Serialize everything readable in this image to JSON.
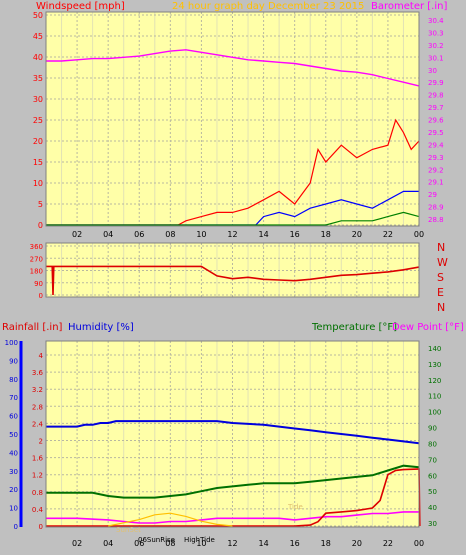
{
  "header": {
    "wind_title": "Windspeed [mph]",
    "date_title": "24 hour graph day   December 23 2015",
    "baro_title": "Barometer [.in]"
  },
  "lower_header": {
    "rain_title": "Rainfall [.in]",
    "humidity_title": "Humidity [%]",
    "temp_title": "Temperature [°F]",
    "dew_title": "Dew Point [°F]"
  },
  "compass": [
    "N",
    "W",
    "S",
    "E",
    "N"
  ],
  "event_labels": {
    "sunrise": "06SunRise",
    "hightide": "HighTide",
    "faded_1": "Tide",
    "faded_2": "SunSet"
  },
  "colors": {
    "plot_bg": "#ffffa8",
    "frame": "#c0c0c0",
    "wind": "#ff0000",
    "wind_avg": "#0000ff",
    "wind_low": "#008000",
    "barometer": "#ff00ff",
    "direction": "#dd0000",
    "rain": "#dd0000",
    "humidity": "#0000dd",
    "temperature": "#007000",
    "dewpoint": "#ff00ff",
    "sun": "#ffc000"
  },
  "chart_data": [
    {
      "type": "line",
      "title": "Windspeed [mph]",
      "subtitle": "24 hour graph day   December 23 2015",
      "x_ticks": [
        "02",
        "04",
        "06",
        "08",
        "10",
        "12",
        "14",
        "16",
        "18",
        "20",
        "22",
        "00"
      ],
      "y_left_label": "Windspeed [mph]",
      "y_left_ticks": [
        0,
        5,
        10,
        15,
        20,
        25,
        30,
        35,
        40,
        45,
        50
      ],
      "y_right_label": "Barometer [.in]",
      "y_right_ticks": [
        "28.8",
        "28.9",
        "29",
        "29.1",
        "29.2",
        "29.3",
        "29.4",
        "29.5",
        "29.6",
        "29.7",
        "29.8",
        "29.9",
        "30",
        "30.1",
        "30.2",
        "30.3",
        "30.4"
      ],
      "y_right_range": [
        28.8,
        30.4
      ],
      "grid": true,
      "series": [
        {
          "name": "Barometer [.in]",
          "axis": "right",
          "x": [
            0,
            1,
            2,
            3,
            4,
            5,
            6,
            7,
            8,
            9,
            10,
            11,
            12,
            13,
            14,
            15,
            16,
            17,
            18,
            19,
            20,
            21,
            22,
            23,
            24
          ],
          "values": [
            30.07,
            30.07,
            30.08,
            30.09,
            30.09,
            30.1,
            30.11,
            30.13,
            30.15,
            30.16,
            30.14,
            30.12,
            30.1,
            30.08,
            30.07,
            30.06,
            30.05,
            30.03,
            30.01,
            29.99,
            29.98,
            29.96,
            29.93,
            29.9,
            29.87
          ]
        },
        {
          "name": "Windspeed [mph]",
          "axis": "left",
          "x": [
            0,
            8.5,
            9,
            10,
            11,
            12,
            13,
            14,
            15,
            16,
            17,
            17.5,
            18,
            19,
            20,
            21,
            22,
            22.5,
            23,
            23.5,
            24
          ],
          "values": [
            0,
            0,
            1,
            2,
            3,
            3,
            4,
            6,
            8,
            5,
            10,
            18,
            15,
            19,
            16,
            18,
            19,
            25,
            22,
            18,
            20
          ]
        },
        {
          "name": "Average speed",
          "axis": "left",
          "x": [
            0,
            13.5,
            14,
            15,
            16,
            17,
            18,
            19,
            20,
            21,
            22,
            23,
            24
          ],
          "values": [
            0,
            0,
            2,
            3,
            2,
            4,
            5,
            6,
            5,
            4,
            6,
            8,
            8
          ]
        },
        {
          "name": "Low speed",
          "axis": "left",
          "x": [
            0,
            17,
            18,
            19,
            20,
            21,
            22,
            23,
            24
          ],
          "values": [
            0,
            0,
            0,
            1,
            1,
            1,
            2,
            3,
            2
          ]
        }
      ]
    },
    {
      "type": "line",
      "y_left_ticks": [
        0,
        90,
        180,
        270,
        360
      ],
      "y_range": [
        0,
        360
      ],
      "grid": true,
      "series": [
        {
          "name": "Wind direction",
          "x": [
            0,
            0.4,
            0.45,
            0.5,
            0.55,
            10,
            11,
            12,
            13,
            14,
            15,
            16,
            17,
            18,
            19,
            20,
            21,
            22,
            23,
            24
          ],
          "values": [
            210,
            210,
            0,
            210,
            210,
            210,
            140,
            120,
            130,
            115,
            110,
            105,
            115,
            130,
            145,
            150,
            160,
            170,
            185,
            205
          ]
        }
      ]
    },
    {
      "type": "line",
      "x_ticks": [
        "02",
        "04",
        "06",
        "08",
        "10",
        "12",
        "14",
        "16",
        "18",
        "20",
        "22",
        "00"
      ],
      "y_rain_ticks": [
        "0",
        "0.4",
        "0.8",
        "1.2",
        "1.6",
        "2",
        "2.4",
        "2.8",
        "3.2",
        "3.6",
        "4"
      ],
      "y_rain_range": [
        0,
        4
      ],
      "y_humidity_ticks": [
        0,
        10,
        20,
        30,
        40,
        50,
        60,
        70,
        80,
        90,
        100
      ],
      "y_temp_ticks": [
        30,
        40,
        50,
        60,
        70,
        80,
        90,
        100,
        110,
        120,
        130,
        140
      ],
      "y_temp_range": [
        25,
        145
      ],
      "grid": true,
      "series": [
        {
          "name": "Humidity [%]",
          "axis": "humidity",
          "x": [
            0,
            2,
            2.5,
            3,
            3.5,
            4,
            4.5,
            11,
            12,
            14,
            15,
            16,
            17,
            18,
            19,
            20,
            21,
            22,
            23,
            24
          ],
          "values": [
            54,
            54,
            55,
            55,
            56,
            56,
            57,
            57,
            56,
            55,
            54,
            53,
            52,
            51,
            50,
            49,
            48,
            47,
            46,
            45
          ]
        },
        {
          "name": "Temperature [°F]",
          "axis": "temp",
          "x": [
            0,
            1,
            2,
            3,
            4,
            5,
            6,
            7,
            8,
            9,
            10,
            11,
            12,
            13,
            14,
            15,
            16,
            17,
            18,
            19,
            20,
            21,
            22,
            23,
            24
          ],
          "values": [
            49,
            49,
            49,
            49,
            47,
            46,
            46,
            46,
            47,
            48,
            50,
            52,
            53,
            54,
            55,
            55,
            55,
            56,
            57,
            58,
            59,
            60,
            63,
            66,
            65
          ]
        },
        {
          "name": "Dew Point [°F]",
          "axis": "temp",
          "x": [
            0,
            2,
            4,
            5,
            6,
            7,
            8,
            9,
            10,
            11,
            12,
            13,
            14,
            15,
            16,
            17,
            18,
            19,
            20,
            21,
            22,
            23,
            24
          ],
          "values": [
            33,
            33,
            32,
            31,
            30,
            30,
            31,
            31,
            32,
            33,
            33,
            33,
            33,
            33,
            32,
            33,
            34,
            34,
            35,
            36,
            36,
            37,
            37
          ]
        },
        {
          "name": "Rainfall [.in]",
          "axis": "rain",
          "x": [
            0,
            16,
            17,
            17.5,
            18,
            19,
            20,
            21,
            21.5,
            22,
            22.5,
            23,
            23.9,
            24,
            24.05
          ],
          "values": [
            0,
            0,
            0.02,
            0.1,
            0.3,
            0.33,
            0.36,
            0.42,
            0.6,
            1.2,
            1.3,
            1.32,
            1.33,
            1.33,
            0
          ]
        },
        {
          "name": "Solar",
          "axis": "sun",
          "x": [
            4,
            5,
            6,
            7,
            8,
            9,
            10,
            11,
            12
          ],
          "values": [
            0,
            2,
            4,
            7,
            8,
            6,
            3,
            1,
            0
          ]
        }
      ]
    }
  ]
}
